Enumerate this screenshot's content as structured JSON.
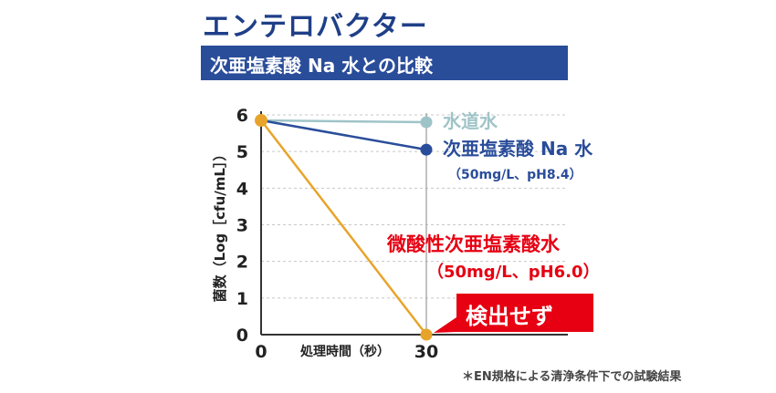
{
  "title": "エンテロバクター",
  "subtitle": "次亜塩素酸 Na 水との比較",
  "badge_label": "検出せず",
  "footnote": "＊EN規格による清浄条件下での試験結果",
  "colors": {
    "title": "#1f3f88",
    "banner": "#2a4d9a",
    "tap_water": "#9fc4c8",
    "naclo": "#2a4d9a",
    "weak_acid": "#e8a42a",
    "weak_acid_label": "#e60012",
    "badge": "#e60012",
    "axis": "#333333",
    "grid": "#c8c8c8"
  },
  "chart_data": {
    "type": "line",
    "ylabel": "菌数（Log［cfu/mL］）",
    "xlabel": "処理時間（秒）",
    "x": [
      0,
      30
    ],
    "xticks": [
      "0",
      "30"
    ],
    "yticks": [
      "0",
      "1",
      "2",
      "3",
      "4",
      "5",
      "6"
    ],
    "ylim": [
      0,
      6
    ],
    "xlim": [
      0,
      30
    ],
    "grid": true,
    "series": [
      {
        "name": "水道水",
        "values": [
          5.85,
          5.8
        ],
        "color": "#9fc4c8",
        "label_color": "#9fc4c8",
        "detail": ""
      },
      {
        "name": "次亜塩素酸 Na 水",
        "values": [
          5.85,
          5.05
        ],
        "color": "#2a4d9a",
        "label_color": "#2a4d9a",
        "detail": "（50mg/L、pH8.4）"
      },
      {
        "name": "微酸性次亜塩素酸水",
        "values": [
          5.85,
          0
        ],
        "color": "#e8a42a",
        "label_color": "#e60012",
        "detail": "（50mg/L、pH6.0）"
      }
    ]
  }
}
